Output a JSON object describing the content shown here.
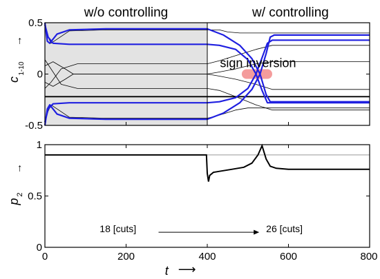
{
  "chart_data": [
    {
      "type": "line",
      "panel": "top",
      "ylabel": "c",
      "ylabel_sub": "1-10",
      "ylabel_arrow": "→",
      "xlim": [
        0,
        800
      ],
      "ylim": [
        -0.5,
        0.5
      ],
      "yticks": [
        -0.5,
        0,
        0.5
      ],
      "yticklabels": [
        "-0.5",
        "0",
        "0.5"
      ],
      "grid": false,
      "shaded_region": [
        0,
        400
      ],
      "headers": [
        {
          "text": "w/o controlling",
          "x": 200
        },
        {
          "text": "w/ controlling",
          "x": 605
        }
      ],
      "annotation": {
        "text": "sign inversion",
        "x": 525,
        "y": 0
      },
      "highlight": {
        "x": [
          485,
          560
        ],
        "y": 0,
        "color": "#f28b8b"
      },
      "series_colors": {
        "highlighted": "#1f1fe0",
        "other": "#000000"
      },
      "series": [
        {
          "group": "blue",
          "points": [
            [
              0,
              0.5
            ],
            [
              6,
              0.32
            ],
            [
              12,
              0.3
            ],
            [
              30,
              0.39
            ],
            [
              60,
              0.43
            ],
            [
              150,
              0.44
            ],
            [
              400,
              0.44
            ],
            [
              440,
              0.38
            ],
            [
              480,
              0.28
            ],
            [
              510,
              0.15
            ],
            [
              530,
              0.0
            ],
            [
              545,
              -0.2
            ],
            [
              555,
              -0.27
            ],
            [
              565,
              -0.27
            ],
            [
              800,
              -0.27
            ]
          ]
        },
        {
          "group": "blue",
          "points": [
            [
              0,
              0.48
            ],
            [
              8,
              0.36
            ],
            [
              20,
              0.3
            ],
            [
              60,
              0.29
            ],
            [
              150,
              0.29
            ],
            [
              400,
              0.29
            ],
            [
              430,
              0.28
            ],
            [
              470,
              0.24
            ],
            [
              500,
              0.14
            ],
            [
              520,
              0.0
            ],
            [
              535,
              -0.16
            ],
            [
              548,
              -0.28
            ],
            [
              560,
              -0.28
            ],
            [
              800,
              -0.28
            ]
          ]
        },
        {
          "group": "blue",
          "points": [
            [
              0,
              -0.5
            ],
            [
              6,
              -0.34
            ],
            [
              12,
              -0.3
            ],
            [
              30,
              -0.39
            ],
            [
              60,
              -0.43
            ],
            [
              150,
              -0.44
            ],
            [
              400,
              -0.44
            ],
            [
              440,
              -0.38
            ],
            [
              480,
              -0.28
            ],
            [
              510,
              -0.15
            ],
            [
              530,
              0.0
            ],
            [
              545,
              0.2
            ],
            [
              555,
              0.36
            ],
            [
              565,
              0.38
            ],
            [
              800,
              0.38
            ]
          ]
        },
        {
          "group": "blue",
          "points": [
            [
              0,
              -0.47
            ],
            [
              8,
              -0.34
            ],
            [
              20,
              -0.29
            ],
            [
              60,
              -0.28
            ],
            [
              150,
              -0.28
            ],
            [
              400,
              -0.28
            ],
            [
              430,
              -0.27
            ],
            [
              470,
              -0.23
            ],
            [
              500,
              -0.14
            ],
            [
              520,
              0.0
            ],
            [
              535,
              0.16
            ],
            [
              548,
              0.3
            ],
            [
              560,
              0.33
            ],
            [
              800,
              0.33
            ]
          ]
        },
        {
          "group": "black",
          "points": [
            [
              0,
              0.44
            ],
            [
              6,
              0.38
            ],
            [
              15,
              0.3
            ],
            [
              60,
              0.42
            ],
            [
              150,
              0.43
            ],
            [
              400,
              0.43
            ],
            [
              430,
              0.43
            ],
            [
              450,
              0.41
            ],
            [
              480,
              0.4
            ],
            [
              500,
              0.4
            ],
            [
              800,
              0.4
            ]
          ]
        },
        {
          "group": "black",
          "points": [
            [
              0,
              0.08
            ],
            [
              20,
              0.12
            ],
            [
              50,
              0.05
            ],
            [
              70,
              0.0
            ],
            [
              400,
              0.0
            ],
            [
              430,
              0.02
            ],
            [
              470,
              0.05
            ],
            [
              520,
              0.1
            ],
            [
              560,
              0.12
            ],
            [
              800,
              0.12
            ]
          ]
        },
        {
          "group": "black",
          "points": [
            [
              0,
              -0.08
            ],
            [
              20,
              -0.12
            ],
            [
              50,
              -0.05
            ],
            [
              70,
              0.0
            ],
            [
              400,
              0.0
            ],
            [
              430,
              -0.02
            ],
            [
              470,
              -0.05
            ],
            [
              520,
              -0.1
            ],
            [
              560,
              -0.15
            ],
            [
              800,
              -0.15
            ]
          ]
        },
        {
          "group": "black",
          "points": [
            [
              0,
              -0.44
            ],
            [
              6,
              -0.38
            ],
            [
              15,
              -0.3
            ],
            [
              60,
              -0.42
            ],
            [
              150,
              -0.43
            ],
            [
              400,
              -0.43
            ],
            [
              430,
              -0.4
            ],
            [
              470,
              -0.35
            ],
            [
              500,
              -0.33
            ],
            [
              800,
              -0.33
            ]
          ]
        },
        {
          "group": "black",
          "points": [
            [
              0,
              0.14
            ],
            [
              15,
              0.05
            ],
            [
              40,
              -0.1
            ],
            [
              80,
              -0.14
            ],
            [
              400,
              -0.14
            ],
            [
              430,
              -0.16
            ],
            [
              470,
              -0.22
            ],
            [
              520,
              -0.3
            ],
            [
              560,
              -0.35
            ],
            [
              800,
              -0.35
            ]
          ]
        },
        {
          "group": "black",
          "points": [
            [
              0,
              -0.14
            ],
            [
              15,
              -0.08
            ],
            [
              40,
              0.05
            ],
            [
              80,
              0.1
            ],
            [
              400,
              0.1
            ],
            [
              430,
              0.13
            ],
            [
              470,
              0.18
            ],
            [
              520,
              0.24
            ],
            [
              560,
              0.28
            ],
            [
              800,
              0.28
            ]
          ]
        },
        {
          "group": "blackthick",
          "points": [
            [
              0,
              -0.22
            ],
            [
              800,
              -0.22
            ]
          ]
        }
      ]
    },
    {
      "type": "line",
      "panel": "bottom",
      "xlabel": "t",
      "xlabel_arrow": "⟶",
      "ylabel": "p",
      "ylabel_sub": "2",
      "ylabel_arrow": "→",
      "xlim": [
        0,
        800
      ],
      "ylim": [
        0,
        1
      ],
      "xticks": [
        0,
        200,
        400,
        600,
        800
      ],
      "xticklabels": [
        "0",
        "200",
        "400",
        "600",
        "800"
      ],
      "yticks": [
        0,
        0.5,
        1
      ],
      "yticklabels": [
        "0",
        "0.5",
        "1"
      ],
      "grid": false,
      "series_color": "#000000",
      "reference_line": {
        "y": 0.9,
        "color": "#999999"
      },
      "annotation_left": {
        "text": "18 [cuts]",
        "x": 180,
        "y": 0.18
      },
      "annotation_right": {
        "text": "26 [cuts]",
        "x": 590,
        "y": 0.18
      },
      "annotation_arrow": {
        "x": [
          280,
          528
        ],
        "y": 0.16
      },
      "points": [
        [
          0,
          0.9
        ],
        [
          398,
          0.9
        ],
        [
          400,
          0.72
        ],
        [
          403,
          0.64
        ],
        [
          406,
          0.7
        ],
        [
          415,
          0.73
        ],
        [
          430,
          0.74
        ],
        [
          460,
          0.76
        ],
        [
          490,
          0.78
        ],
        [
          510,
          0.82
        ],
        [
          525,
          0.9
        ],
        [
          535,
          0.99
        ],
        [
          545,
          0.86
        ],
        [
          555,
          0.79
        ],
        [
          570,
          0.77
        ],
        [
          600,
          0.76
        ],
        [
          800,
          0.76
        ]
      ]
    }
  ]
}
